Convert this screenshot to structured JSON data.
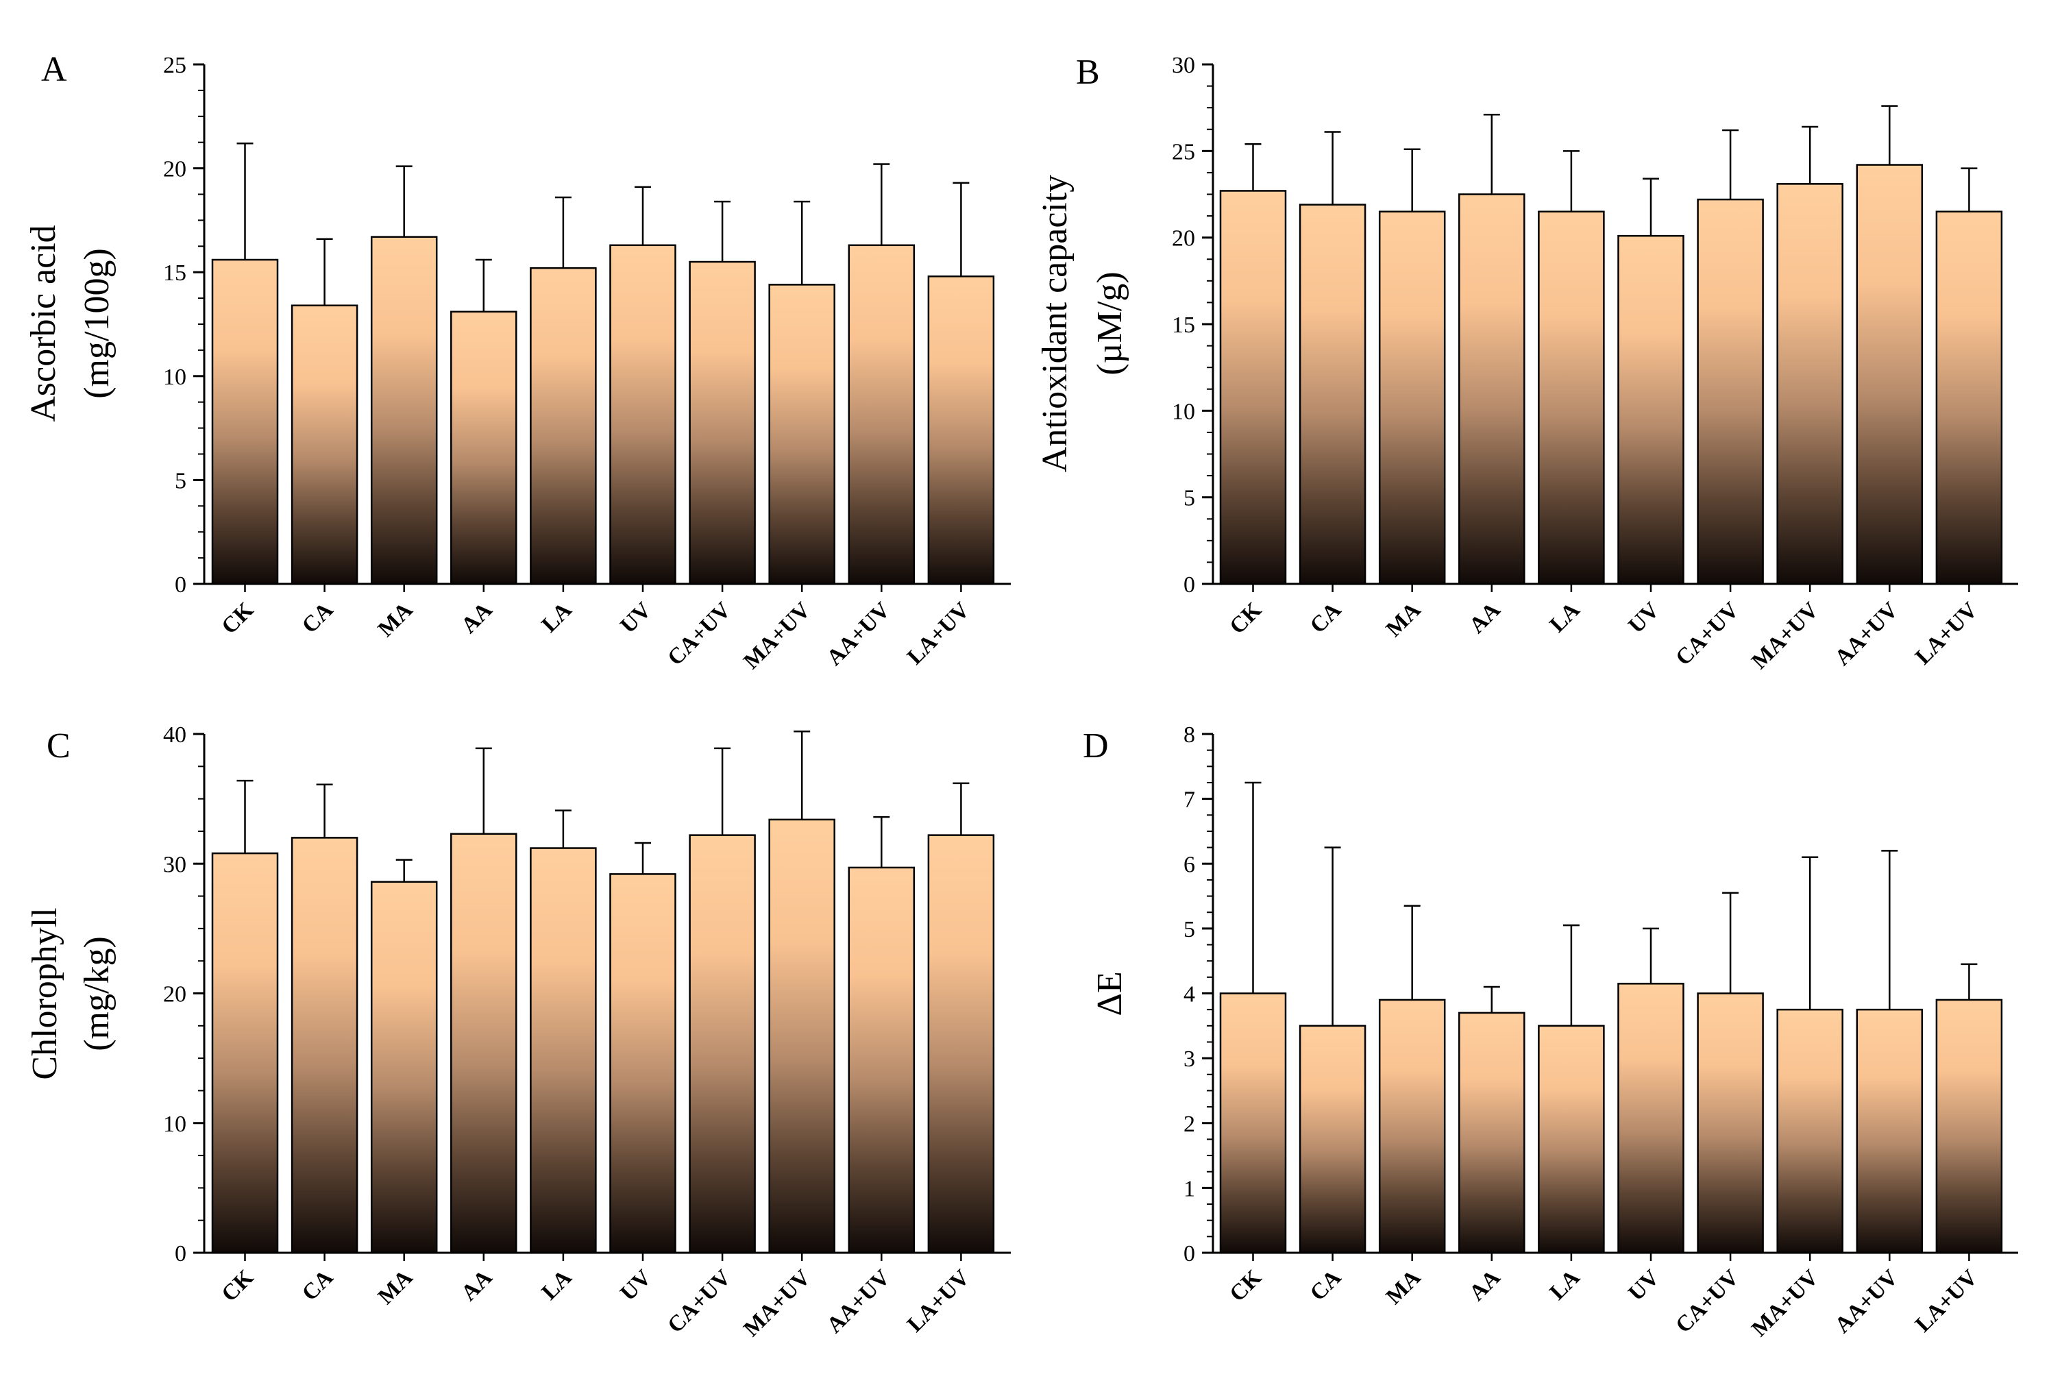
{
  "chart_data": [
    {
      "panel": "A",
      "type": "bar",
      "ylabel_lines": [
        "Ascorbic acid",
        "(mg/100g)"
      ],
      "ylim": [
        0,
        25
      ],
      "yticks": [
        0,
        5,
        10,
        15,
        20,
        25
      ],
      "categories": [
        "CK",
        "CA",
        "MA",
        "AA",
        "LA",
        "UV",
        "CA+UV",
        "MA+UV",
        "AA+UV",
        "LA+UV"
      ],
      "values": [
        15.6,
        13.4,
        16.7,
        13.1,
        15.2,
        16.3,
        15.5,
        14.4,
        16.3,
        14.8
      ],
      "error": [
        5.6,
        3.2,
        3.4,
        2.5,
        3.4,
        2.8,
        2.9,
        4.0,
        3.9,
        4.5
      ]
    },
    {
      "panel": "B",
      "type": "bar",
      "ylabel_lines": [
        "Antioxidant capacity",
        "(µM/g)"
      ],
      "ylim": [
        0,
        30
      ],
      "yticks": [
        0,
        5,
        10,
        15,
        20,
        25,
        30
      ],
      "categories": [
        "CK",
        "CA",
        "MA",
        "AA",
        "LA",
        "UV",
        "CA+UV",
        "MA+UV",
        "AA+UV",
        "LA+UV"
      ],
      "values": [
        22.7,
        21.9,
        21.5,
        22.5,
        21.5,
        20.1,
        22.2,
        23.1,
        24.2,
        21.5
      ],
      "error": [
        2.7,
        4.2,
        3.6,
        4.6,
        3.5,
        3.3,
        4.0,
        3.3,
        3.4,
        2.5
      ]
    },
    {
      "panel": "C",
      "type": "bar",
      "ylabel_lines": [
        "Chlorophyll",
        "(mg/kg)"
      ],
      "ylim": [
        0,
        40
      ],
      "yticks": [
        0,
        10,
        20,
        30,
        40
      ],
      "categories": [
        "CK",
        "CA",
        "MA",
        "AA",
        "LA",
        "UV",
        "CA+UV",
        "MA+UV",
        "AA+UV",
        "LA+UV"
      ],
      "values": [
        30.8,
        32.0,
        28.6,
        32.3,
        31.2,
        29.2,
        32.2,
        33.4,
        29.7,
        32.2
      ],
      "error": [
        5.6,
        4.1,
        1.7,
        6.6,
        2.9,
        2.4,
        6.7,
        6.8,
        3.9,
        4.0
      ]
    },
    {
      "panel": "D",
      "type": "bar",
      "ylabel_lines": [
        "ΔE"
      ],
      "ylim": [
        0,
        8
      ],
      "yticks": [
        0,
        1,
        2,
        3,
        4,
        5,
        6,
        7,
        8
      ],
      "categories": [
        "CK",
        "CA",
        "MA",
        "AA",
        "LA",
        "UV",
        "CA+UV",
        "MA+UV",
        "AA+UV",
        "LA+UV"
      ],
      "values": [
        4.0,
        3.5,
        3.9,
        3.7,
        3.5,
        4.15,
        4.0,
        3.75,
        3.75,
        3.9
      ],
      "error": [
        3.25,
        2.75,
        1.45,
        0.4,
        1.55,
        0.85,
        1.55,
        2.35,
        2.45,
        0.55
      ]
    }
  ]
}
